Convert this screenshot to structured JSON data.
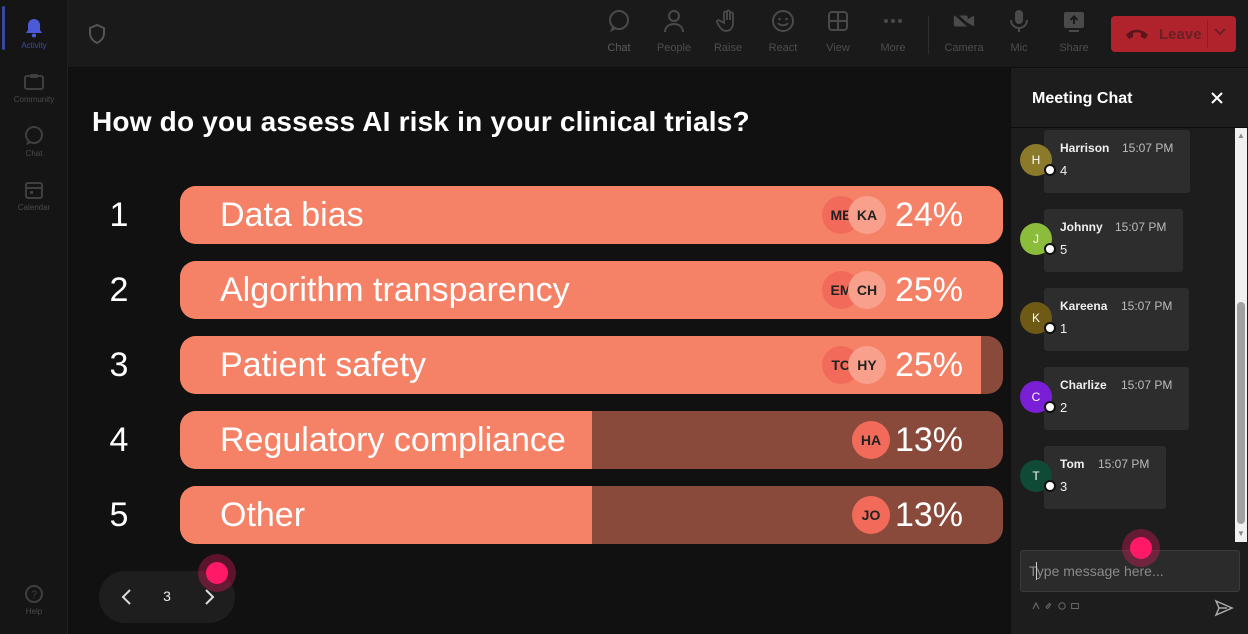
{
  "rail": {
    "items": [
      {
        "label": "Activity",
        "icon": "bell-icon"
      },
      {
        "label": "Community",
        "icon": "community-icon"
      },
      {
        "label": "Chat",
        "icon": "chat-icon"
      },
      {
        "label": "Calendar",
        "icon": "calendar-icon"
      }
    ],
    "help": {
      "label": "Help",
      "icon": "help-icon"
    }
  },
  "toolbar": {
    "buttons": [
      {
        "label": "Chat",
        "icon": "chat-icon"
      },
      {
        "label": "People",
        "icon": "people-icon"
      },
      {
        "label": "Raise",
        "icon": "hand-icon"
      },
      {
        "label": "React",
        "icon": "smile-icon"
      },
      {
        "label": "View",
        "icon": "grid-icon"
      },
      {
        "label": "More",
        "icon": "more-icon"
      },
      {
        "label": "Camera",
        "icon": "camera-off-icon"
      },
      {
        "label": "Mic",
        "icon": "mic-icon"
      },
      {
        "label": "Share",
        "icon": "share-icon"
      }
    ],
    "leave_label": "Leave",
    "leave_color": "#b0232c"
  },
  "poll": {
    "question": "How do you assess AI risk in your clinical trials?",
    "fill_color": "#f58266",
    "track_color": "#894a3b",
    "options": [
      {
        "num": "1",
        "label": "Data bias",
        "pct": "24%",
        "fill": 1.0,
        "avatars": [
          "ME",
          "KA"
        ]
      },
      {
        "num": "2",
        "label": "Algorithm transparency",
        "pct": "25%",
        "fill": 1.0,
        "avatars": [
          "EM",
          "CH"
        ]
      },
      {
        "num": "3",
        "label": "Patient safety",
        "pct": "25%",
        "fill": 0.973,
        "avatars": [
          "TO",
          "HY"
        ]
      },
      {
        "num": "4",
        "label": "Regulatory compliance",
        "pct": "13%",
        "fill": 0.5,
        "avatars": [
          "HA"
        ]
      },
      {
        "num": "5",
        "label": "Other",
        "pct": "13%",
        "fill": 0.5,
        "avatars": [
          "JO"
        ]
      }
    ]
  },
  "pager": {
    "page": "3"
  },
  "chat": {
    "title": "Meeting Chat",
    "messages": [
      {
        "initial": "H",
        "name": "Harrison",
        "time": "15:07 PM",
        "text": "4",
        "color": "#8a7a2a"
      },
      {
        "initial": "J",
        "name": "Johnny",
        "time": "15:07 PM",
        "text": "5",
        "color": "#8cbc3c"
      },
      {
        "initial": "K",
        "name": "Kareena",
        "time": "15:07 PM",
        "text": "1",
        "color": "#6e5a14"
      },
      {
        "initial": "C",
        "name": "Charlize",
        "time": "15:07 PM",
        "text": "2",
        "color": "#7a1fd6"
      },
      {
        "initial": "T",
        "name": "Tom",
        "time": "15:07 PM",
        "text": "3",
        "color": "#0e4a36"
      }
    ],
    "compose_placeholder": "Type message here..."
  }
}
